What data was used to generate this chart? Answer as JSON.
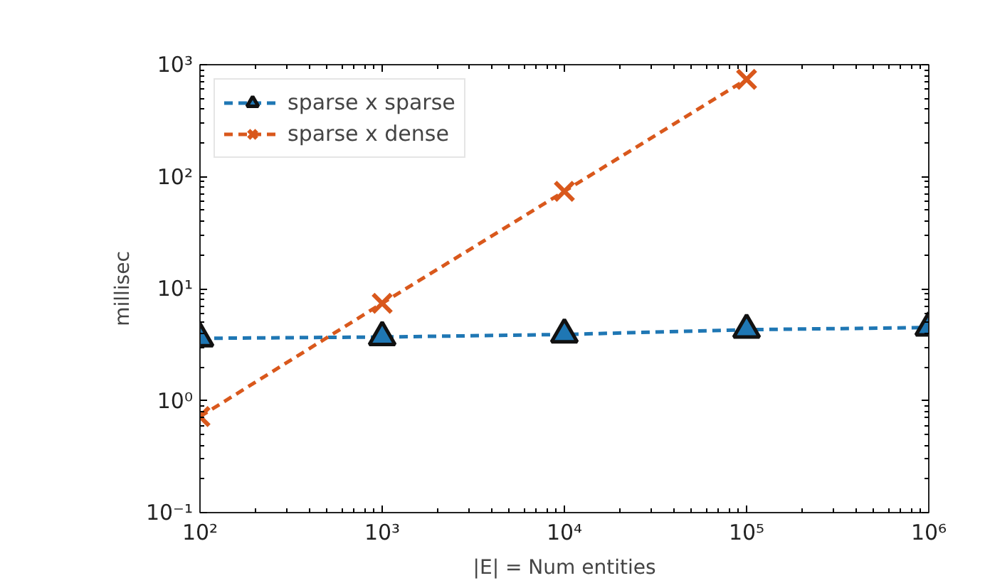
{
  "chart_data": {
    "type": "line",
    "xlabel": "|E| = Num entities",
    "ylabel": "millisec",
    "log": "xy",
    "x": [
      100,
      1000,
      10000,
      100000,
      1000000
    ],
    "xlim": [
      100,
      1000000
    ],
    "xticks": [
      {
        "value": 100,
        "label": "10²"
      },
      {
        "value": 1000,
        "label": "10³"
      },
      {
        "value": 10000,
        "label": "10⁴"
      },
      {
        "value": 100000,
        "label": "10⁵"
      },
      {
        "value": 1000000,
        "label": "10⁶"
      }
    ],
    "ylim": [
      0.1,
      1000
    ],
    "yticks": [
      {
        "value": 0.1,
        "label": "10⁻¹"
      },
      {
        "value": 1,
        "label": "10⁰"
      },
      {
        "value": 10,
        "label": "10¹"
      },
      {
        "value": 100,
        "label": "10²"
      },
      {
        "value": 1000,
        "label": "10³"
      }
    ],
    "series": [
      {
        "name": "sparse x sparse",
        "color": "#1f77b4",
        "marker": "triangle",
        "values": [
          3.6,
          3.7,
          3.9,
          4.3,
          4.5
        ]
      },
      {
        "name": "sparse x dense",
        "color": "#d9581c",
        "marker": "cross",
        "x": [
          100,
          1000,
          10000,
          100000
        ],
        "values": [
          0.72,
          7.4,
          74,
          740
        ]
      }
    ],
    "line_style": "dashed",
    "grid": false,
    "legend": "top left"
  }
}
